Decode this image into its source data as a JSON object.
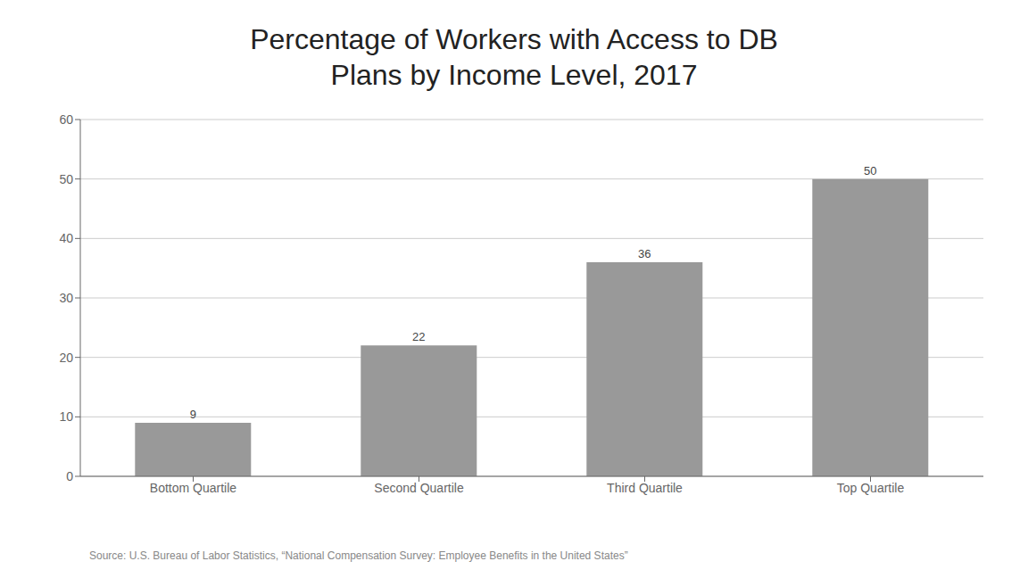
{
  "chart_data": {
    "type": "bar",
    "title": "Percentage of Workers with Access to DB\nPlans by Income Level, 2017",
    "categories": [
      "Bottom Quartile",
      "Second Quartile",
      "Third Quartile",
      "Top Quartile"
    ],
    "values": [
      9,
      22,
      36,
      50
    ],
    "color": "#999999",
    "ylim": [
      0,
      60
    ],
    "yticks": [
      0,
      10,
      20,
      30,
      40,
      50,
      60
    ],
    "grid": true,
    "data_labels": true,
    "annotations": [
      "Source: U.S. Bureau of Labor Statistics, “National Compensation Survey: Employee Benefits in the United States”"
    ]
  }
}
